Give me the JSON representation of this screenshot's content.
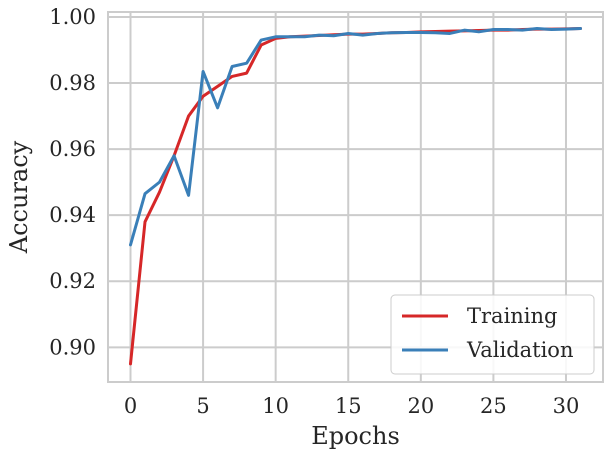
{
  "chart_data": {
    "type": "line",
    "title": "",
    "xlabel": "Epochs",
    "ylabel": "Accuracy",
    "xlim": [
      -1.55,
      32.55
    ],
    "ylim": [
      0.8895,
      1.0015
    ],
    "xticks": [
      0,
      5,
      10,
      15,
      20,
      25,
      30
    ],
    "yticks": [
      "0.90",
      "0.92",
      "0.94",
      "0.96",
      "0.98",
      "1.00"
    ],
    "grid": true,
    "legend_position": "lower-right",
    "x": [
      0,
      1,
      2,
      3,
      4,
      5,
      6,
      7,
      8,
      9,
      10,
      11,
      12,
      13,
      14,
      15,
      16,
      17,
      18,
      19,
      20,
      21,
      22,
      23,
      24,
      25,
      26,
      27,
      28,
      29,
      30,
      31
    ],
    "series": [
      {
        "name": "Training",
        "color": "#d62728",
        "values": [
          0.895,
          0.938,
          0.947,
          0.958,
          0.97,
          0.976,
          0.979,
          0.982,
          0.983,
          0.9915,
          0.9935,
          0.994,
          0.9942,
          0.9944,
          0.9946,
          0.9948,
          0.9948,
          0.995,
          0.9952,
          0.9953,
          0.9955,
          0.9956,
          0.9957,
          0.9958,
          0.9959,
          0.996,
          0.996,
          0.9962,
          0.9963,
          0.9963,
          0.9964,
          0.9965
        ]
      },
      {
        "name": "Validation",
        "color": "#3a7fb8",
        "values": [
          0.931,
          0.9465,
          0.95,
          0.958,
          0.946,
          0.9835,
          0.9725,
          0.985,
          0.986,
          0.993,
          0.994,
          0.994,
          0.994,
          0.9945,
          0.9943,
          0.995,
          0.9945,
          0.995,
          0.9952,
          0.9953,
          0.9953,
          0.9952,
          0.995,
          0.996,
          0.9955,
          0.9962,
          0.9962,
          0.996,
          0.9965,
          0.9962,
          0.9963,
          0.9965
        ]
      }
    ]
  }
}
